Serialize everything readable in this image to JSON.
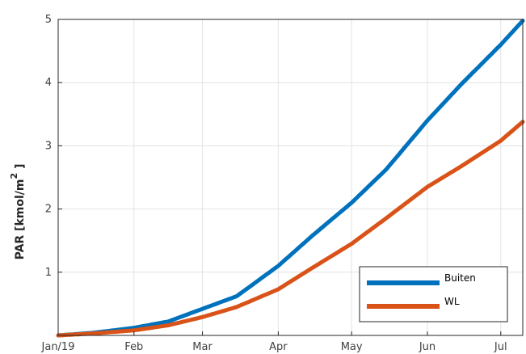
{
  "chart_data": {
    "type": "line",
    "title": "",
    "xlabel": "",
    "ylabel": "PAR [kmol/m",
    "ylabel_superscript": "2",
    "ylabel_suffix": " ]",
    "xlim": [
      "2019-01-01",
      "2019-07-10"
    ],
    "ylim": [
      0,
      5
    ],
    "y_ticks": [
      1,
      2,
      3,
      4,
      5
    ],
    "x_ticks": [
      {
        "date": "2019-01-01",
        "label": "Jan/19"
      },
      {
        "date": "2019-02-01",
        "label": "Feb"
      },
      {
        "date": "2019-03-01",
        "label": "Mar"
      },
      {
        "date": "2019-04-01",
        "label": "Apr"
      },
      {
        "date": "2019-05-01",
        "label": "May"
      },
      {
        "date": "2019-06-01",
        "label": "Jun"
      },
      {
        "date": "2019-07-01",
        "label": "Jul"
      }
    ],
    "grid": true,
    "legend_position": "bottom-right",
    "series": [
      {
        "name": "Buiten",
        "color": "#0072BD",
        "points": [
          [
            "2019-01-01",
            0.0
          ],
          [
            "2019-01-15",
            0.04
          ],
          [
            "2019-02-01",
            0.12
          ],
          [
            "2019-02-15",
            0.22
          ],
          [
            "2019-03-01",
            0.42
          ],
          [
            "2019-03-15",
            0.62
          ],
          [
            "2019-04-01",
            1.1
          ],
          [
            "2019-04-15",
            1.58
          ],
          [
            "2019-05-01",
            2.1
          ],
          [
            "2019-05-15",
            2.62
          ],
          [
            "2019-06-01",
            3.4
          ],
          [
            "2019-06-15",
            3.98
          ],
          [
            "2019-07-01",
            4.6
          ],
          [
            "2019-07-10",
            4.98
          ]
        ]
      },
      {
        "name": "WL",
        "color": "#D95319",
        "points": [
          [
            "2019-01-01",
            0.0
          ],
          [
            "2019-01-15",
            0.03
          ],
          [
            "2019-02-01",
            0.08
          ],
          [
            "2019-02-15",
            0.16
          ],
          [
            "2019-03-01",
            0.29
          ],
          [
            "2019-03-15",
            0.45
          ],
          [
            "2019-04-01",
            0.73
          ],
          [
            "2019-04-15",
            1.07
          ],
          [
            "2019-05-01",
            1.45
          ],
          [
            "2019-05-15",
            1.85
          ],
          [
            "2019-06-01",
            2.35
          ],
          [
            "2019-06-15",
            2.68
          ],
          [
            "2019-07-01",
            3.08
          ],
          [
            "2019-07-10",
            3.38
          ]
        ]
      }
    ]
  }
}
